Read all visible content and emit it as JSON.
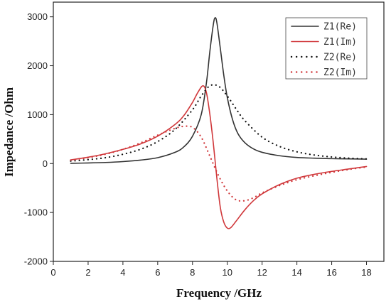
{
  "chart_data": {
    "type": "line",
    "title": "",
    "xlabel": "Frequency /GHz",
    "ylabel": "Impedance /Ohm",
    "xlim": [
      0,
      19
    ],
    "ylim": [
      -2000,
      3300
    ],
    "xticks": [
      0,
      2,
      4,
      6,
      8,
      10,
      12,
      14,
      16,
      18
    ],
    "yticks": [
      -2000,
      -1000,
      0,
      1000,
      2000,
      3000
    ],
    "grid": false,
    "legend_position": "top-right",
    "series": [
      {
        "name": "Z1(Re)",
        "color": "#333333",
        "dash": "solid",
        "x": [
          1,
          2,
          3,
          4,
          5,
          6,
          7,
          7.5,
          8,
          8.5,
          8.8,
          9,
          9.2,
          9.3,
          9.4,
          9.6,
          9.8,
          10,
          10.3,
          10.6,
          11,
          11.5,
          12,
          13,
          14,
          15,
          16,
          17,
          18
        ],
        "y": [
          5,
          12,
          22,
          40,
          70,
          120,
          230,
          340,
          560,
          1000,
          1650,
          2300,
          2850,
          2980,
          2880,
          2350,
          1800,
          1350,
          900,
          620,
          430,
          300,
          230,
          160,
          125,
          110,
          100,
          95,
          90
        ]
      },
      {
        "name": "Z1(Im)",
        "color": "#d0373a",
        "dash": "solid",
        "x": [
          1,
          2,
          3,
          4,
          5,
          6,
          7,
          7.5,
          8,
          8.3,
          8.6,
          8.8,
          9,
          9.2,
          9.4,
          9.6,
          9.8,
          10,
          10.2,
          10.5,
          11,
          11.5,
          12,
          13,
          14,
          15,
          16,
          17,
          18
        ],
        "y": [
          75,
          130,
          200,
          290,
          400,
          560,
          800,
          980,
          1250,
          1450,
          1590,
          1450,
          1000,
          400,
          -300,
          -900,
          -1200,
          -1320,
          -1310,
          -1180,
          -950,
          -760,
          -620,
          -430,
          -300,
          -220,
          -160,
          -110,
          -60
        ]
      },
      {
        "name": "Z2(Re)",
        "color": "#111111",
        "dash": "dotted",
        "x": [
          1,
          2,
          3,
          4,
          5,
          6,
          7,
          8,
          8.5,
          9,
          9.5,
          10,
          10.5,
          11,
          12,
          13,
          14,
          15,
          16,
          17,
          18
        ],
        "y": [
          50,
          80,
          120,
          190,
          290,
          450,
          700,
          1100,
          1380,
          1590,
          1580,
          1380,
          1120,
          880,
          540,
          350,
          240,
          175,
          135,
          110,
          95
        ]
      },
      {
        "name": "Z2(Im)",
        "color": "#d0373a",
        "dash": "dotted",
        "x": [
          1,
          2,
          3,
          4,
          5,
          6,
          7,
          7.5,
          8,
          8.5,
          9,
          9.5,
          10,
          10.5,
          11,
          11.5,
          12,
          13,
          14,
          15,
          16,
          17,
          18
        ],
        "y": [
          70,
          120,
          190,
          290,
          420,
          580,
          720,
          760,
          740,
          540,
          150,
          -250,
          -560,
          -740,
          -760,
          -700,
          -600,
          -450,
          -330,
          -250,
          -180,
          -120,
          -70
        ]
      }
    ]
  }
}
